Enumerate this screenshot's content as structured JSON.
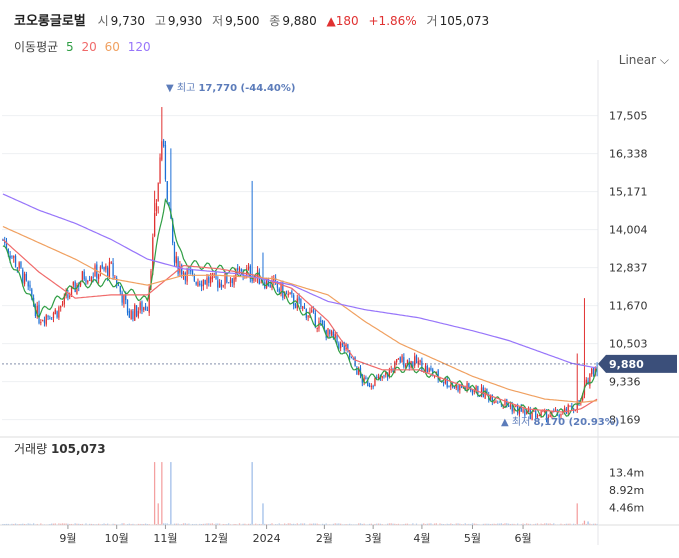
{
  "header": {
    "stock_name": "코오롱글로벌",
    "open_label": "시",
    "open": "9,730",
    "high_label": "고",
    "high": "9,930",
    "low_label": "저",
    "low": "9,500",
    "close_label": "종",
    "close": "9,880",
    "change": "180",
    "change_pct": "+1.86%",
    "volume_label": "거",
    "volume": "105,073",
    "up_color": "#e03131"
  },
  "moving_average": {
    "label": "이동평균",
    "periods": [
      {
        "period": "5",
        "color": "#2f9e44"
      },
      {
        "period": "20",
        "color": "#f06a6a"
      },
      {
        "period": "60",
        "color": "#f0a060"
      },
      {
        "period": "120",
        "color": "#9775fa"
      }
    ]
  },
  "scale_toggle": {
    "label": "Linear",
    "icon": "chevron-down-icon"
  },
  "chart_data": {
    "type": "candlestick",
    "price_axis": {
      "ticks": [
        "17,505",
        "16,338",
        "15,171",
        "14,004",
        "12,837",
        "11,670",
        "10,503",
        "9,336",
        "8,169"
      ],
      "range": [
        7850,
        18600
      ]
    },
    "x_axis": {
      "ticks": [
        "9월",
        "10월",
        "11월",
        "12월",
        "2024",
        "2월",
        "3월",
        "4월",
        "5월",
        "6월"
      ]
    },
    "current_price": "9,880",
    "max_marker": {
      "price": "17,770",
      "pct": "(-44.40%)",
      "prefix": "최고"
    },
    "min_marker": {
      "price": "8,170",
      "pct": "(20.93%)",
      "prefix": "최저"
    },
    "volume_panel": {
      "label": "거래량",
      "value": "105,073",
      "ticks": [
        "13.4m",
        "8.92m",
        "4.46m"
      ],
      "max": 17800000
    },
    "colors": {
      "up": "#e03131",
      "down": "#1c6fd6",
      "price_tag_bg": "#3b4f7a",
      "marker_text": "#5c7cba"
    },
    "price_keypoints": [
      [
        0,
        13700
      ],
      [
        10,
        12700
      ],
      [
        20,
        11300
      ],
      [
        30,
        11500
      ],
      [
        45,
        12600
      ],
      [
        60,
        12800
      ],
      [
        70,
        11400
      ],
      [
        80,
        11700
      ],
      [
        88,
        16800
      ],
      [
        95,
        13000
      ],
      [
        105,
        12500
      ],
      [
        120,
        12400
      ],
      [
        135,
        12700
      ],
      [
        150,
        12300
      ],
      [
        170,
        11400
      ],
      [
        180,
        10800
      ],
      [
        190,
        10300
      ],
      [
        200,
        9300
      ],
      [
        210,
        9400
      ],
      [
        220,
        10000
      ],
      [
        230,
        9900
      ],
      [
        240,
        9500
      ],
      [
        250,
        9200
      ],
      [
        260,
        9100
      ],
      [
        270,
        8900
      ],
      [
        280,
        8600
      ],
      [
        290,
        8350
      ],
      [
        300,
        8300
      ],
      [
        310,
        8350
      ],
      [
        320,
        8700
      ],
      [
        325,
        9600
      ],
      [
        329,
        9880
      ]
    ],
    "spikes": [
      [
        88,
        17770
      ],
      [
        93,
        16500
      ],
      [
        138,
        15500
      ],
      [
        84,
        15200
      ],
      [
        144,
        13300
      ],
      [
        86,
        14500
      ],
      [
        322,
        11900
      ],
      [
        318,
        10200
      ]
    ],
    "ma_keypoints": {
      "5": [
        [
          0,
          13500
        ],
        [
          20,
          11400
        ],
        [
          40,
          12300
        ],
        [
          60,
          12400
        ],
        [
          80,
          11800
        ],
        [
          90,
          15000
        ],
        [
          100,
          13000
        ],
        [
          140,
          12600
        ],
        [
          160,
          11800
        ],
        [
          180,
          10800
        ],
        [
          200,
          9400
        ],
        [
          215,
          9600
        ],
        [
          225,
          9800
        ],
        [
          240,
          9500
        ],
        [
          260,
          9100
        ],
        [
          280,
          8600
        ],
        [
          300,
          8350
        ],
        [
          315,
          8400
        ],
        [
          329,
          9700
        ]
      ],
      "20": [
        [
          0,
          13700
        ],
        [
          20,
          12700
        ],
        [
          40,
          11900
        ],
        [
          60,
          12000
        ],
        [
          80,
          12000
        ],
        [
          100,
          12900
        ],
        [
          120,
          12800
        ],
        [
          140,
          12600
        ],
        [
          160,
          12200
        ],
        [
          180,
          11200
        ],
        [
          195,
          10000
        ],
        [
          210,
          9700
        ],
        [
          230,
          9700
        ],
        [
          250,
          9300
        ],
        [
          270,
          8900
        ],
        [
          290,
          8500
        ],
        [
          310,
          8400
        ],
        [
          320,
          8500
        ],
        [
          329,
          8800
        ]
      ],
      "60": [
        [
          0,
          14100
        ],
        [
          20,
          13600
        ],
        [
          40,
          13100
        ],
        [
          60,
          12500
        ],
        [
          80,
          12300
        ],
        [
          100,
          12600
        ],
        [
          120,
          12600
        ],
        [
          150,
          12500
        ],
        [
          180,
          12000
        ],
        [
          200,
          11200
        ],
        [
          220,
          10500
        ],
        [
          240,
          10000
        ],
        [
          260,
          9500
        ],
        [
          280,
          9100
        ],
        [
          300,
          8800
        ],
        [
          320,
          8700
        ],
        [
          329,
          8750
        ]
      ],
      "120": [
        [
          0,
          15100
        ],
        [
          20,
          14600
        ],
        [
          40,
          14200
        ],
        [
          60,
          13700
        ],
        [
          80,
          13100
        ],
        [
          100,
          12800
        ],
        [
          130,
          12650
        ],
        [
          160,
          12300
        ],
        [
          180,
          11800
        ],
        [
          200,
          11550
        ],
        [
          230,
          11300
        ],
        [
          260,
          10900
        ],
        [
          280,
          10600
        ],
        [
          300,
          10200
        ],
        [
          315,
          9900
        ],
        [
          329,
          9750
        ]
      ]
    }
  }
}
